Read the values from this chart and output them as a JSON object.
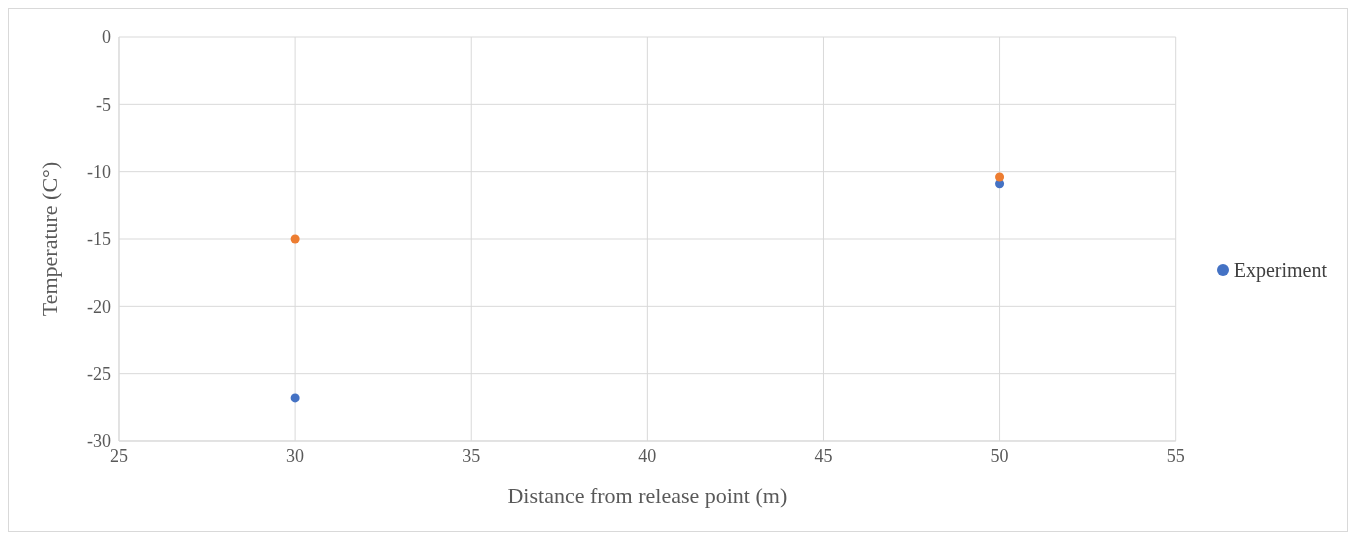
{
  "chart_data": {
    "type": "scatter",
    "xlabel": "Distance from release point (m)",
    "ylabel": "Temperature (C°)",
    "x": [
      30,
      50
    ],
    "series": [
      {
        "name": "Experiment",
        "color": "#4472c4",
        "values": [
          -26.8,
          -10.9
        ]
      },
      {
        "color": "#ed7d31",
        "values": [
          -15,
          -10.4
        ]
      }
    ],
    "xlim": [
      25,
      55
    ],
    "xticks": [
      25,
      30,
      35,
      40,
      45,
      50,
      55
    ],
    "ylim": [
      -30,
      0
    ],
    "yticks": [
      -30,
      -25,
      -20,
      -15,
      -10,
      -5,
      0
    ],
    "grid": true,
    "legend": "right",
    "marker": "circle"
  }
}
